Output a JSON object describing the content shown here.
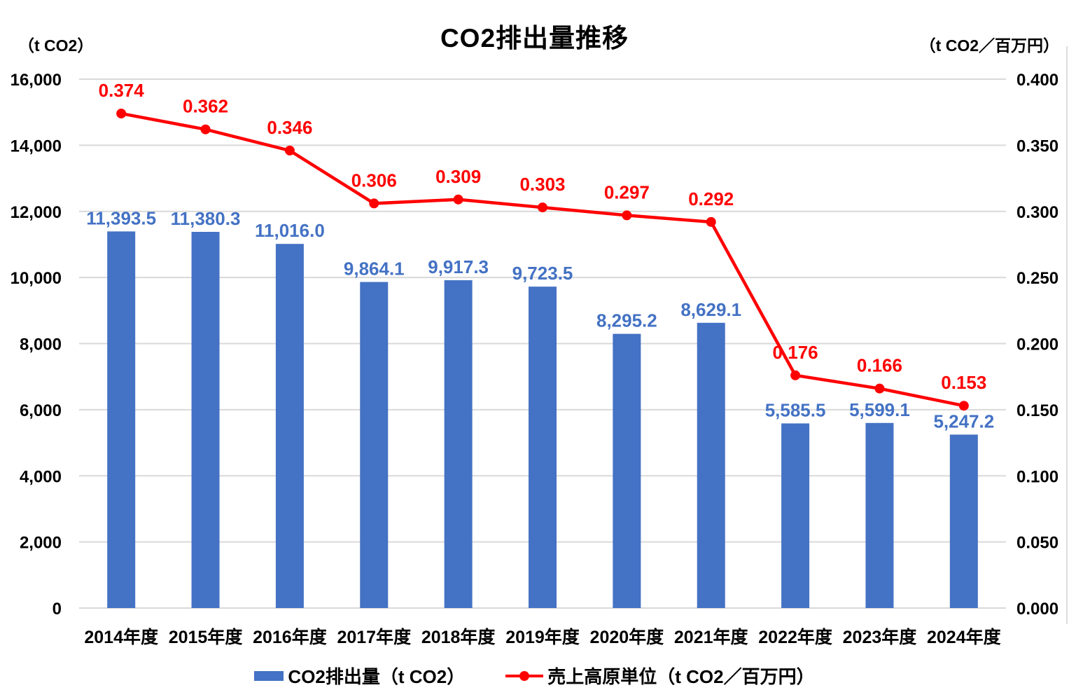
{
  "chart_data": {
    "type": "bar+line",
    "title": "CO2排出量推移",
    "left_axis": {
      "unit_label": "（t CO2）",
      "min": 0,
      "max": 16000,
      "step": 2000,
      "ticks": [
        "0",
        "2,000",
        "4,000",
        "6,000",
        "8,000",
        "10,000",
        "12,000",
        "14,000",
        "16,000"
      ]
    },
    "right_axis": {
      "unit_label": "（t CO2／百万円）",
      "min": 0,
      "max": 0.4,
      "step": 0.05,
      "ticks": [
        "0.000",
        "0.050",
        "0.100",
        "0.150",
        "0.200",
        "0.250",
        "0.300",
        "0.350",
        "0.400"
      ]
    },
    "categories": [
      "2014年度",
      "2015年度",
      "2016年度",
      "2017年度",
      "2018年度",
      "2019年度",
      "2020年度",
      "2021年度",
      "2022年度",
      "2023年度",
      "2024年度"
    ],
    "series": [
      {
        "name": "CO2排出量（t CO2）",
        "type": "bar",
        "axis": "left",
        "color": "#4472C4",
        "values": [
          11393.5,
          11380.3,
          11016.0,
          9864.1,
          9917.3,
          9723.5,
          8295.2,
          8629.1,
          5585.5,
          5599.1,
          5247.2
        ],
        "labels": [
          "11,393.5",
          "11,380.3",
          "11,016.0",
          "9,864.1",
          "9,917.3",
          "9,723.5",
          "8,295.2",
          "8,629.1",
          "5,585.5",
          "5,599.1",
          "5,247.2"
        ]
      },
      {
        "name": "売上高原単位（t CO2／百万円）",
        "type": "line",
        "axis": "right",
        "color": "#FF0000",
        "values": [
          0.374,
          0.362,
          0.346,
          0.306,
          0.309,
          0.303,
          0.297,
          0.292,
          0.176,
          0.166,
          0.153
        ],
        "labels": [
          "0.374",
          "0.362",
          "0.346",
          "0.306",
          "0.309",
          "0.303",
          "0.297",
          "0.292",
          "0.176",
          "0.166",
          "0.153"
        ]
      }
    ],
    "layout_hints": {
      "grid": "horizontal",
      "legend_position": "bottom",
      "gridline_color": "#D9D9D9"
    }
  }
}
